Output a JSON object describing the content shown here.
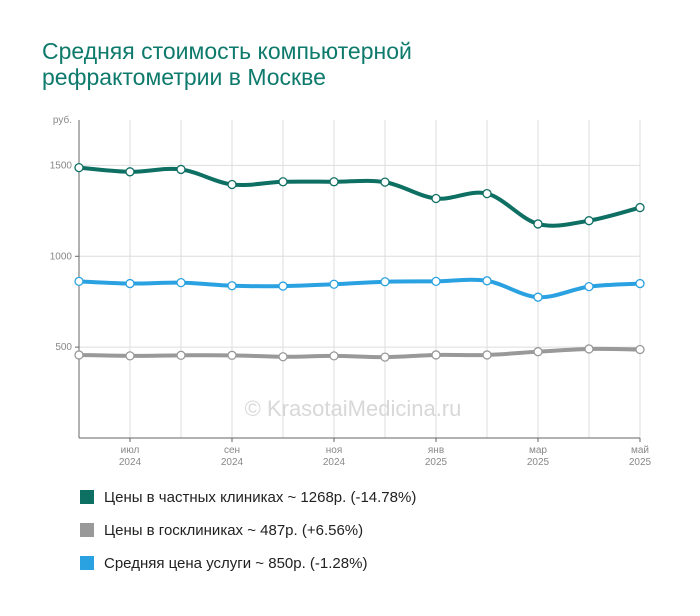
{
  "chart_data": {
    "type": "line",
    "title_lines": [
      "Средняя стоимость компьютерной",
      "рефрактометрии в Москве"
    ],
    "ylabel": "руб.",
    "ylim": [
      0,
      1750
    ],
    "yticks": [
      500,
      1000,
      1500
    ],
    "x": [
      "2024-06",
      "2024-07",
      "2024-08",
      "2024-09",
      "2024-10",
      "2024-11",
      "2024-12",
      "2025-01",
      "2025-02",
      "2025-03",
      "2025-04",
      "2025-05"
    ],
    "xtick_labels": [
      {
        "index": 1,
        "month": "июл",
        "year": "2024"
      },
      {
        "index": 3,
        "month": "сен",
        "year": "2024"
      },
      {
        "index": 5,
        "month": "ноя",
        "year": "2024"
      },
      {
        "index": 7,
        "month": "янв",
        "year": "2025"
      },
      {
        "index": 9,
        "month": "мар",
        "year": "2025"
      },
      {
        "index": 11,
        "month": "май",
        "year": "2025"
      }
    ],
    "series": [
      {
        "name": "Цены в частных клиниках ~ 1268р. (-14.78%)",
        "color": "#0e6f63",
        "values": [
          1488,
          1465,
          1478,
          1395,
          1410,
          1410,
          1408,
          1318,
          1345,
          1178,
          1196,
          1268
        ]
      },
      {
        "name": "Цены в госклиниках ~ 487р. (+6.56%)",
        "color": "#999999",
        "values": [
          457,
          452,
          455,
          455,
          447,
          452,
          445,
          457,
          457,
          475,
          490,
          487
        ]
      },
      {
        "name": "Средняя цена услуги ~ 850р. (-1.28%)",
        "color": "#2aa1e0",
        "values": [
          862,
          850,
          855,
          838,
          836,
          846,
          860,
          862,
          865,
          775,
          833,
          850
        ]
      }
    ],
    "watermark": "© KrasotaiMedicina.ru",
    "grid": true,
    "legend_position": "bottom-left"
  }
}
